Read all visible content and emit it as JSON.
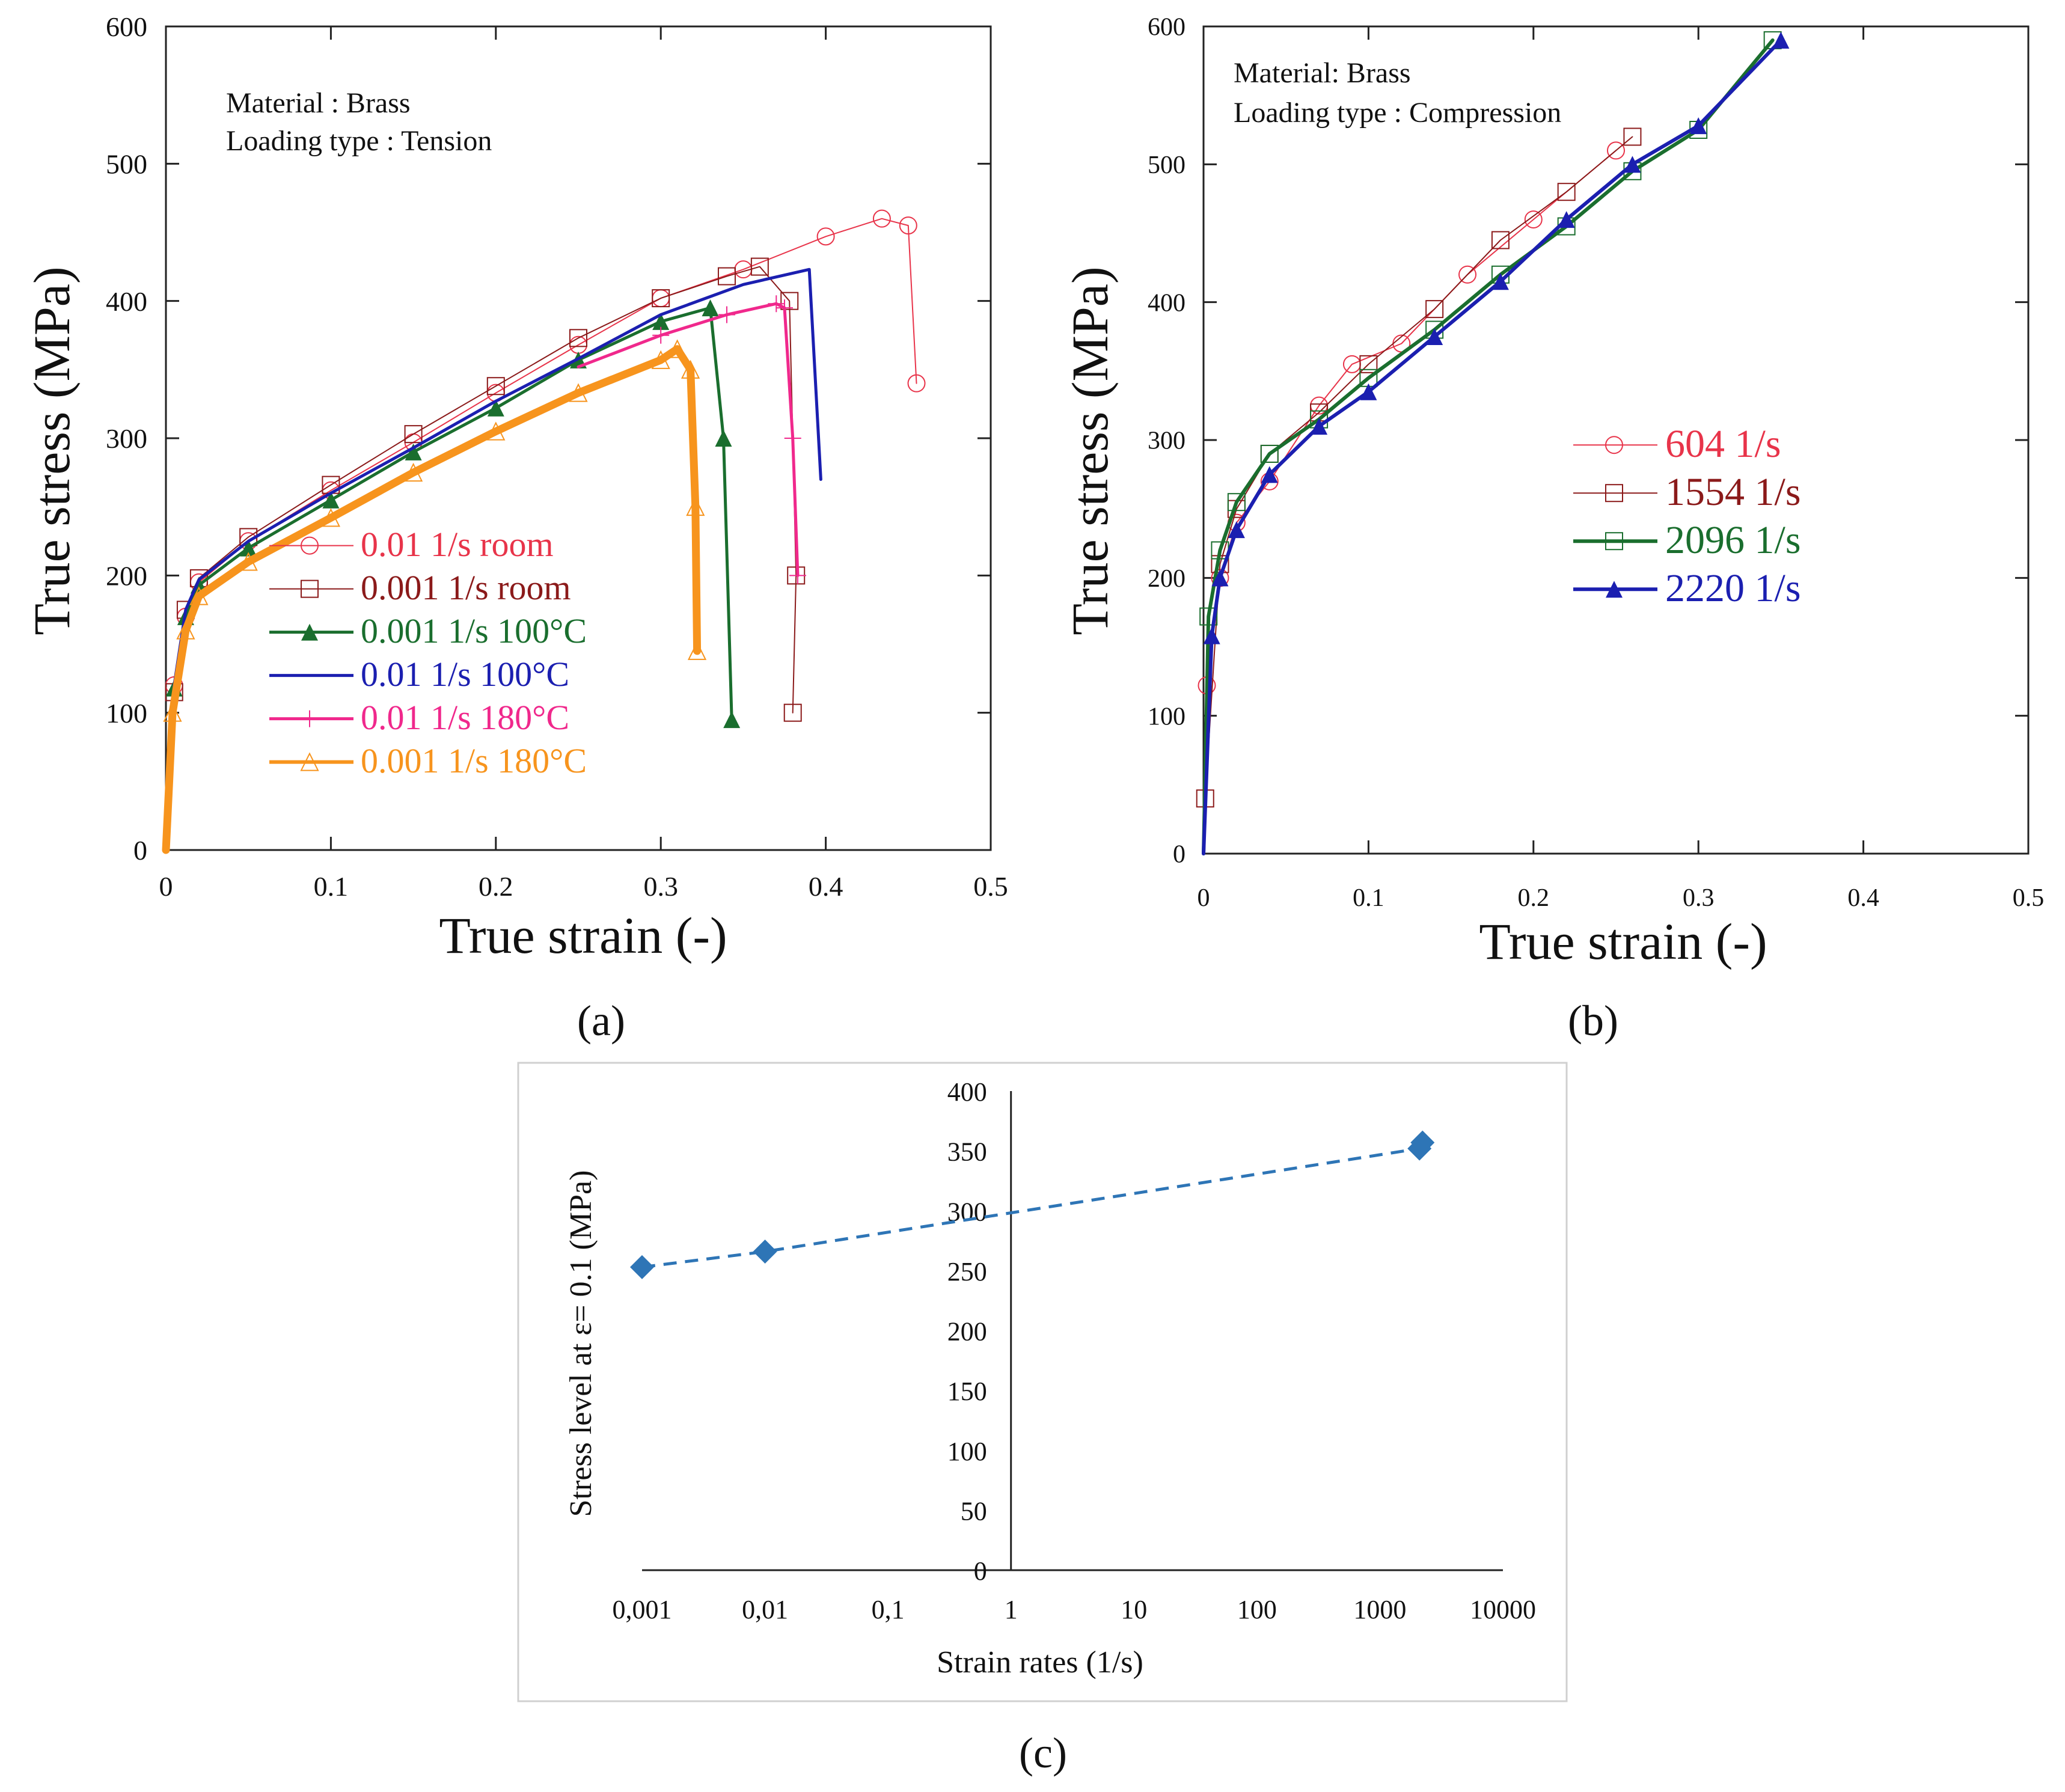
{
  "chart_data": [
    {
      "id": "a",
      "type": "line",
      "panel_label": "(a)",
      "annotation": [
        "Material : Brass",
        "Loading type : Tension"
      ],
      "xlabel": "True strain (-)",
      "ylabel": "True stress (MPa)",
      "xlim": [
        0,
        0.5
      ],
      "ylim": [
        0,
        600
      ],
      "xticks": [
        "0",
        "0.1",
        "0.2",
        "0.3",
        "0.4",
        "0.5"
      ],
      "yticks": [
        "0",
        "100",
        "200",
        "300",
        "400",
        "500",
        "600"
      ],
      "legend_position": "center-left",
      "series": [
        {
          "name": "0.01 1/s room",
          "color": "#e8344a",
          "marker": "circle",
          "width": 2,
          "x": [
            0,
            0.005,
            0.012,
            0.02,
            0.05,
            0.1,
            0.15,
            0.2,
            0.25,
            0.3,
            0.35,
            0.4,
            0.434,
            0.45,
            0.455
          ],
          "y": [
            0,
            120,
            170,
            195,
            225,
            262,
            297,
            333,
            368,
            402,
            423,
            447,
            460,
            455,
            340
          ]
        },
        {
          "name": "0.001 1/s room",
          "color": "#8b1a1a",
          "marker": "square",
          "width": 2,
          "x": [
            0,
            0.005,
            0.012,
            0.02,
            0.05,
            0.1,
            0.15,
            0.2,
            0.25,
            0.3,
            0.34,
            0.36,
            0.378,
            0.382,
            0.38
          ],
          "y": [
            0,
            115,
            175,
            198,
            228,
            266,
            303,
            338,
            373,
            402,
            418,
            425,
            400,
            200,
            100
          ]
        },
        {
          "name": "0.001 1/s 100°C",
          "color": "#1a6e2e",
          "marker": "triangle",
          "width": 5,
          "x": [
            0,
            0.005,
            0.012,
            0.02,
            0.05,
            0.1,
            0.15,
            0.2,
            0.25,
            0.3,
            0.33,
            0.338,
            0.343
          ],
          "y": [
            0,
            118,
            170,
            193,
            220,
            255,
            290,
            322,
            357,
            385,
            395,
            300,
            95
          ]
        },
        {
          "name": "0.01 1/s 100°C",
          "color": "#1b1fb0",
          "marker": "none",
          "width": 5,
          "x": [
            0,
            0.005,
            0.012,
            0.02,
            0.05,
            0.1,
            0.15,
            0.2,
            0.25,
            0.3,
            0.35,
            0.39,
            0.397
          ],
          "y": [
            0,
            120,
            175,
            197,
            225,
            260,
            293,
            327,
            358,
            390,
            412,
            423,
            270
          ]
        },
        {
          "name": "0.01 1/s 180°C",
          "color": "#f0288c",
          "marker": "plus",
          "width": 5,
          "x": [
            0.25,
            0.3,
            0.34,
            0.37,
            0.375,
            0.38,
            0.383
          ],
          "y": [
            352,
            375,
            390,
            398,
            395,
            300,
            200
          ]
        },
        {
          "name": "0.001 1/s 180°C",
          "color": "#f7941d",
          "marker": "triangle-open",
          "width": 13,
          "x": [
            0,
            0.004,
            0.012,
            0.02,
            0.05,
            0.1,
            0.15,
            0.2,
            0.25,
            0.3,
            0.31,
            0.318,
            0.321,
            0.322
          ],
          "y": [
            0,
            100,
            160,
            185,
            210,
            242,
            275,
            305,
            333,
            357,
            365,
            350,
            250,
            145
          ]
        }
      ]
    },
    {
      "id": "b",
      "type": "line",
      "panel_label": "(b)",
      "annotation": [
        "Material: Brass",
        "Loading type : Compression"
      ],
      "xlabel": "True strain (-)",
      "ylabel": "True stress (MPa)",
      "xlim": [
        0,
        0.5
      ],
      "ylim": [
        0,
        600
      ],
      "xticks": [
        "0",
        "0.1",
        "0.2",
        "0.3",
        "0.4",
        "0.5"
      ],
      "yticks": [
        "0",
        "100",
        "200",
        "300",
        "400",
        "500",
        "600"
      ],
      "legend_position": "center-right",
      "series": [
        {
          "name": "604 1/s",
          "color": "#e8344a",
          "marker": "circle",
          "width": 2,
          "x": [
            0,
            0.002,
            0.01,
            0.02,
            0.04,
            0.07,
            0.09,
            0.12,
            0.16,
            0.2,
            0.25
          ],
          "y": [
            0,
            122,
            200,
            240,
            270,
            325,
            355,
            370,
            420,
            460,
            510
          ]
        },
        {
          "name": "1554 1/s",
          "color": "#8b1a1a",
          "marker": "square",
          "width": 2,
          "x": [
            0,
            0.001,
            0.01,
            0.02,
            0.04,
            0.07,
            0.1,
            0.14,
            0.18,
            0.22,
            0.26
          ],
          "y": [
            0,
            40,
            210,
            250,
            290,
            320,
            355,
            395,
            445,
            480,
            520
          ]
        },
        {
          "name": "2096 1/s",
          "color": "#1a6e2e",
          "marker": "square",
          "width": 6,
          "x": [
            0,
            0.003,
            0.01,
            0.02,
            0.04,
            0.07,
            0.1,
            0.14,
            0.18,
            0.22,
            0.26,
            0.3,
            0.345
          ],
          "y": [
            0,
            172,
            220,
            255,
            290,
            315,
            345,
            380,
            420,
            455,
            495,
            525,
            590
          ]
        },
        {
          "name": "2220 1/s",
          "color": "#1b1fb0",
          "marker": "triangle",
          "width": 6,
          "x": [
            0,
            0.005,
            0.01,
            0.02,
            0.04,
            0.07,
            0.1,
            0.14,
            0.18,
            0.22,
            0.26,
            0.3,
            0.35
          ],
          "y": [
            0,
            158,
            200,
            235,
            275,
            310,
            335,
            375,
            415,
            460,
            500,
            528,
            590
          ]
        }
      ]
    },
    {
      "id": "c",
      "type": "scatter",
      "panel_label": "(c)",
      "xlabel": "Strain rates (1/s)",
      "ylabel": "Stress level at ε= 0.1 (MPa)",
      "x_scale": "log",
      "xlim": [
        0.001,
        10000
      ],
      "ylim": [
        0,
        400
      ],
      "xticks": [
        "0,001",
        "0,01",
        "0,1",
        "1",
        "10",
        "100",
        "1000",
        "10000"
      ],
      "yticks": [
        "0",
        "50",
        "100",
        "150",
        "200",
        "250",
        "300",
        "350",
        "400"
      ],
      "series": [
        {
          "name": "Stress level at ε= 0.1",
          "color": "#2e75b6",
          "marker": "diamond",
          "line": "dashed",
          "x": [
            0.001,
            0.01,
            2096,
            2220
          ],
          "y": [
            253,
            266,
            352,
            357
          ]
        }
      ]
    }
  ]
}
